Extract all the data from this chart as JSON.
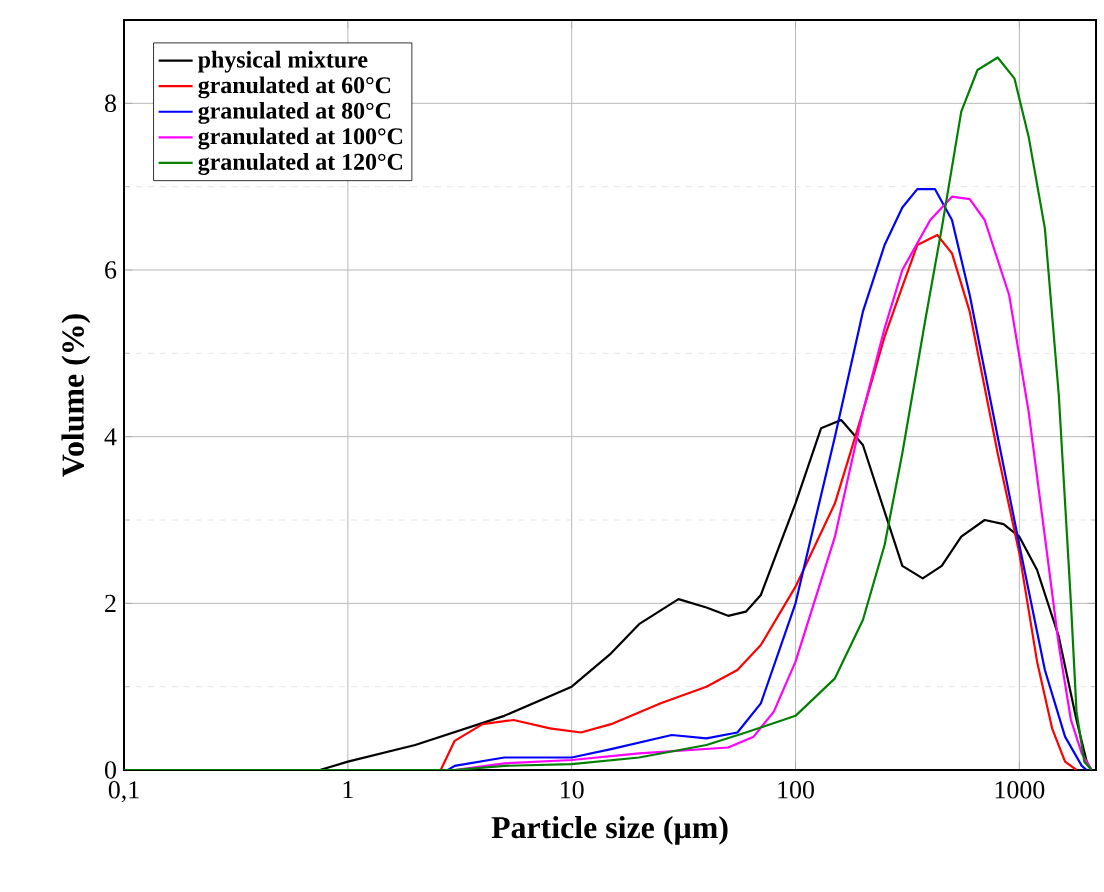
{
  "chart_data": {
    "type": "line",
    "xlabel": "Particle size (µm)",
    "ylabel": "Volume (%)",
    "log": "x",
    "grid": true,
    "legend": "top left",
    "marker": "none",
    "line_style": "solid",
    "xlim": [
      0.1,
      2200
    ],
    "ylim": [
      0,
      9
    ],
    "xticks": [
      {
        "value": 0.1,
        "label": "0,1"
      },
      1,
      10,
      100,
      1000
    ],
    "yticks": [
      0,
      2,
      4,
      6,
      8
    ],
    "series": [
      {
        "name": "physical mixture",
        "color": "#000000",
        "x": [
          0.1,
          0.75,
          1,
          2,
          5,
          10,
          15,
          20,
          30,
          40,
          50,
          60,
          70,
          100,
          130,
          160,
          200,
          250,
          300,
          370,
          450,
          550,
          700,
          850,
          1000,
          1200,
          1500,
          1800,
          2000,
          2100
        ],
        "values": [
          0,
          0,
          0.1,
          0.3,
          0.65,
          1.0,
          1.4,
          1.75,
          2.05,
          1.95,
          1.85,
          1.9,
          2.1,
          3.2,
          4.1,
          4.2,
          3.9,
          3.1,
          2.45,
          2.3,
          2.45,
          2.8,
          3.0,
          2.95,
          2.8,
          2.4,
          1.6,
          0.6,
          0.1,
          0
        ]
      },
      {
        "name": "granulated at 60°C",
        "color": "#ff0000",
        "x": [
          0.1,
          2.6,
          3,
          4,
          5.5,
          8,
          11,
          15,
          25,
          40,
          55,
          70,
          100,
          150,
          200,
          250,
          300,
          350,
          430,
          500,
          600,
          800,
          1000,
          1200,
          1400,
          1600,
          1800
        ],
        "values": [
          0,
          0,
          0.35,
          0.55,
          0.6,
          0.5,
          0.45,
          0.55,
          0.8,
          1.0,
          1.2,
          1.5,
          2.2,
          3.2,
          4.3,
          5.2,
          5.8,
          6.3,
          6.42,
          6.2,
          5.5,
          3.8,
          2.6,
          1.3,
          0.5,
          0.1,
          0
        ]
      },
      {
        "name": "granulated at 80°C",
        "color": "#0000ff",
        "x": [
          0.1,
          2.8,
          3,
          5,
          10,
          15,
          28,
          40,
          55,
          70,
          100,
          150,
          200,
          250,
          300,
          350,
          420,
          500,
          600,
          800,
          1000,
          1300,
          1600,
          1900,
          2000
        ],
        "values": [
          0,
          0,
          0.05,
          0.15,
          0.15,
          0.25,
          0.42,
          0.38,
          0.45,
          0.8,
          2.0,
          4.0,
          5.5,
          6.3,
          6.75,
          6.97,
          6.97,
          6.6,
          5.7,
          4.0,
          2.7,
          1.2,
          0.4,
          0.05,
          0
        ]
      },
      {
        "name": "granulated at 100°C",
        "color": "#ff00ff",
        "x": [
          0.1,
          3,
          5,
          10,
          20,
          50,
          65,
          80,
          100,
          150,
          200,
          250,
          300,
          400,
          500,
          600,
          700,
          900,
          1100,
          1300,
          1500,
          1700,
          1900,
          2100
        ],
        "values": [
          0,
          0,
          0.08,
          0.12,
          0.2,
          0.27,
          0.4,
          0.7,
          1.3,
          2.8,
          4.3,
          5.3,
          6.0,
          6.6,
          6.88,
          6.85,
          6.6,
          5.7,
          4.3,
          2.8,
          1.5,
          0.6,
          0.2,
          0
        ]
      },
      {
        "name": "granulated at 120°C",
        "color": "#008000",
        "x": [
          0.1,
          3,
          5,
          10,
          20,
          40,
          60,
          100,
          150,
          200,
          250,
          300,
          380,
          450,
          550,
          650,
          800,
          950,
          1100,
          1300,
          1500,
          1700,
          1800,
          1950,
          2100
        ],
        "values": [
          0,
          0,
          0.05,
          0.07,
          0.15,
          0.3,
          0.45,
          0.65,
          1.1,
          1.8,
          2.7,
          3.8,
          5.4,
          6.5,
          7.9,
          8.4,
          8.55,
          8.3,
          7.6,
          6.5,
          4.5,
          2.0,
          0.7,
          0.1,
          0
        ]
      }
    ]
  }
}
